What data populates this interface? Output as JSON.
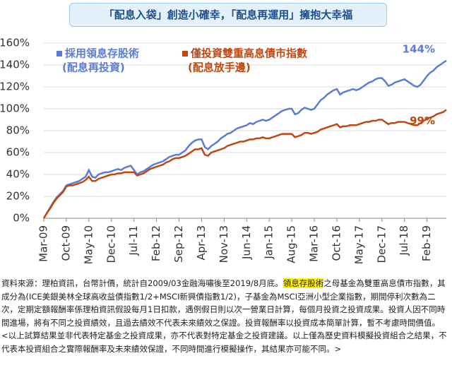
{
  "header": {
    "title": "「配息入袋」創造小確幸，「配息再運用」擁抱大幸福"
  },
  "chart_data": {
    "type": "line",
    "categories": [
      "Mar-09",
      null,
      null,
      null,
      null,
      null,
      null,
      "Oct-09",
      null,
      null,
      null,
      null,
      null,
      null,
      "May-10",
      null,
      null,
      null,
      null,
      null,
      null,
      "Dec-10",
      null,
      null,
      null,
      null,
      null,
      null,
      "Jul-11",
      null,
      null,
      null,
      null,
      null,
      null,
      "Feb-12",
      null,
      null,
      null,
      null,
      null,
      null,
      "Sep-12",
      null,
      null,
      null,
      null,
      null,
      null,
      "Apr-13",
      null,
      null,
      null,
      null,
      null,
      null,
      "Nov-13",
      null,
      null,
      null,
      null,
      null,
      null,
      "Jun-14",
      null,
      null,
      null,
      null,
      null,
      null,
      "Jan-15",
      null,
      null,
      null,
      null,
      null,
      null,
      "Aug-15",
      null,
      null,
      null,
      null,
      null,
      null,
      "Mar-16",
      null,
      null,
      null,
      null,
      null,
      null,
      "Oct-16",
      null,
      null,
      null,
      null,
      null,
      null,
      "May-17",
      null,
      null,
      null,
      null,
      null,
      null,
      "Dec-17",
      null,
      null,
      null,
      null,
      null,
      null,
      "Jul-18",
      null,
      null,
      null,
      null,
      null,
      null,
      "Feb-19",
      null,
      null,
      null,
      null,
      null,
      null
    ],
    "series": [
      {
        "name": "採用領息存股術",
        "note": "(配息再投資)",
        "color": "#5b7bd5",
        "values": [
          0,
          5,
          10,
          15,
          19,
          22,
          25,
          30,
          31,
          32,
          33,
          34,
          36,
          38,
          44,
          38,
          37,
          40,
          41,
          42,
          42,
          43,
          44,
          45,
          44,
          46,
          47,
          48,
          44,
          40,
          42,
          43,
          45,
          47,
          49,
          50,
          51,
          52,
          54,
          56,
          57,
          58,
          58,
          60,
          62,
          66,
          69,
          71,
          72,
          72,
          65,
          63,
          66,
          68,
          70,
          73,
          75,
          77,
          78,
          80,
          82,
          83,
          84,
          85,
          87,
          86,
          88,
          89,
          90,
          89,
          90,
          92,
          94,
          96,
          98,
          99,
          100,
          100,
          95,
          96,
          99,
          101,
          100,
          99,
          100,
          104,
          108,
          110,
          113,
          115,
          117,
          118,
          113,
          115,
          116,
          117,
          118,
          117,
          118,
          120,
          122,
          124,
          125,
          127,
          128,
          128,
          125,
          121,
          122,
          124,
          125,
          126,
          127,
          125,
          123,
          121,
          120,
          122,
          126,
          130,
          133,
          135,
          138,
          140,
          142,
          144
        ]
      },
      {
        "name": "僅投資雙重高息債市指數",
        "note": "(配息放手邊)",
        "color": "#c0480f",
        "values": [
          0,
          5,
          9,
          14,
          18,
          21,
          24,
          29,
          30,
          30,
          31,
          32,
          33,
          35,
          38,
          34,
          34,
          36,
          37,
          38,
          39,
          40,
          40,
          41,
          41,
          42,
          42,
          42,
          42,
          39,
          40,
          41,
          43,
          45,
          46,
          47,
          48,
          49,
          51,
          52,
          54,
          55,
          55,
          56,
          57,
          59,
          61,
          63,
          63,
          64,
          58,
          57,
          60,
          61,
          62,
          63,
          64,
          66,
          67,
          68,
          69,
          70,
          70,
          71,
          72,
          72,
          73,
          73,
          74,
          73,
          73,
          74,
          75,
          76,
          77,
          77,
          77,
          77,
          74,
          75,
          76,
          78,
          78,
          77,
          78,
          79,
          81,
          82,
          83,
          84,
          85,
          86,
          83,
          84,
          84,
          85,
          85,
          85,
          86,
          87,
          88,
          88,
          89,
          89,
          90,
          90,
          88,
          86,
          87,
          87,
          88,
          88,
          88,
          87,
          86,
          85,
          85,
          87,
          89,
          91,
          92,
          93,
          95,
          96,
          97,
          99
        ]
      }
    ],
    "annotations": [
      "144%",
      "99%"
    ],
    "ylim": [
      0,
      160
    ],
    "yticks": [
      {
        "value": 0,
        "label": "0%"
      },
      {
        "value": 20,
        "label": "20%"
      },
      {
        "value": 40,
        "label": "40%"
      },
      {
        "value": 60,
        "label": "60%"
      },
      {
        "value": 80,
        "label": "80%"
      },
      {
        "value": 100,
        "label": "100%"
      },
      {
        "value": 120,
        "label": "120%"
      },
      {
        "value": 140,
        "label": "140%"
      },
      {
        "value": 160,
        "label": "160%"
      }
    ],
    "grid": true
  },
  "footnote": {
    "before": "資料來源：理柏資訊，台幣計價，統計自2009/03金融海嘯後至2019/8月底。",
    "highlight": "領息存股術",
    "after": "之母基金為雙重高息債市指數，其成分為(ICE美銀美林全球高收益債指數1/2+MSCI新興債指數1/2)，子基金為MSCI亞洲小型企業指數，期間停利次數為二次，定期定額報酬率係理柏資訊假設每月1日扣款，遇例假日則以次一營業日計算，每個月投資之投資成果。投資人因不同時間進場，將有不同之投資績效，且過去績效不代表未來績效之保證。投資報酬率以投資成本簡單計算，暫不考慮時間價值。 <以上試算結果並非代表特定基金之投資成果，亦不代表對特定基金之投資建議。以上僅為歷史資料模擬投資組合之結果，不代表本投資組合之實際報酬率及未來績效保證，不同時間進行模擬操作，其結果亦可能不同。>"
  }
}
